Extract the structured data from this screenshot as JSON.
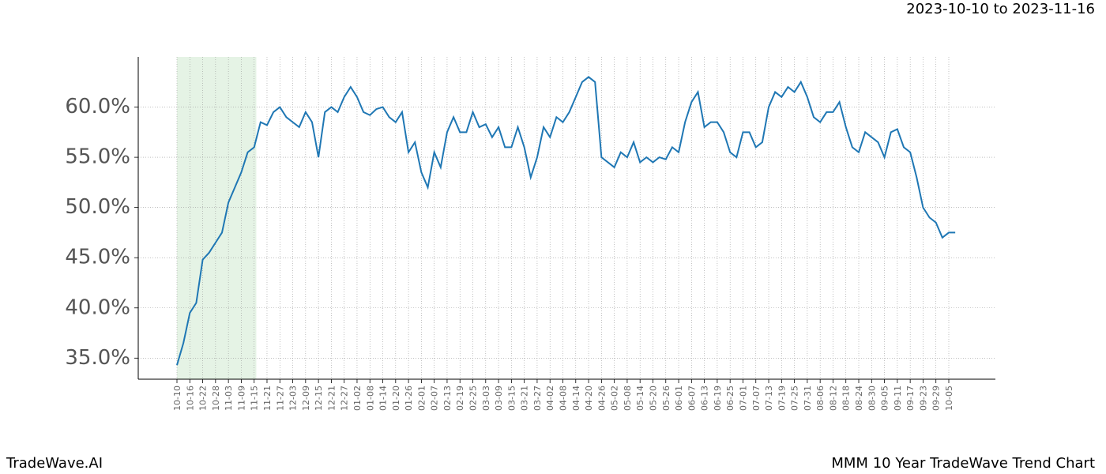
{
  "chart_data": {
    "type": "line",
    "title": "MMM 10 Year TradeWave Trend Chart",
    "subtitle": "2023-10-10 to 2023-11-16",
    "brand": "TradeWave.AI",
    "x": [
      "10-10",
      "10-13",
      "10-16",
      "10-19",
      "10-22",
      "10-25",
      "10-28",
      "10-31",
      "11-03",
      "11-06",
      "11-09",
      "11-12",
      "11-15",
      "11-18",
      "11-21",
      "11-24",
      "11-27",
      "11-30",
      "12-03",
      "12-06",
      "12-09",
      "12-12",
      "12-15",
      "12-18",
      "12-21",
      "12-24",
      "12-27",
      "12-30",
      "01-02",
      "01-05",
      "01-08",
      "01-11",
      "01-14",
      "01-17",
      "01-20",
      "01-23",
      "01-26",
      "01-29",
      "02-01",
      "02-04",
      "02-07",
      "02-10",
      "02-13",
      "02-16",
      "02-19",
      "02-22",
      "02-25",
      "02-28",
      "03-03",
      "03-06",
      "03-09",
      "03-12",
      "03-15",
      "03-18",
      "03-21",
      "03-24",
      "03-27",
      "03-30",
      "04-02",
      "04-05",
      "04-08",
      "04-11",
      "04-14",
      "04-17",
      "04-20",
      "04-23",
      "04-26",
      "04-29",
      "05-02",
      "05-05",
      "05-08",
      "05-11",
      "05-14",
      "05-17",
      "05-20",
      "05-23",
      "05-26",
      "05-29",
      "06-01",
      "06-04",
      "06-07",
      "06-10",
      "06-13",
      "06-16",
      "06-19",
      "06-22",
      "06-25",
      "06-28",
      "07-01",
      "07-04",
      "07-07",
      "07-10",
      "07-13",
      "07-16",
      "07-19",
      "07-22",
      "07-25",
      "07-28",
      "07-31",
      "08-03",
      "08-06",
      "08-09",
      "08-12",
      "08-15",
      "08-18",
      "08-21",
      "08-24",
      "08-27",
      "08-30",
      "09-02",
      "09-05",
      "09-08",
      "09-11",
      "09-14",
      "09-17",
      "09-20",
      "09-23",
      "09-26",
      "09-29",
      "10-02",
      "10-05",
      "10-08"
    ],
    "series": [
      {
        "name": "MMM",
        "color": "#1f77b4",
        "values": [
          34.3,
          36.5,
          39.5,
          40.5,
          44.8,
          45.5,
          46.5,
          47.5,
          50.5,
          52,
          53.5,
          55.5,
          56,
          58.5,
          58.2,
          59.5,
          60,
          59,
          58.5,
          58,
          59.5,
          58.5,
          55,
          59.5,
          60,
          59.5,
          61,
          62,
          61,
          59.5,
          59.2,
          59.8,
          60,
          59,
          58.5,
          59.5,
          55.5,
          56.5,
          53.5,
          52,
          55.5,
          54,
          57.5,
          59,
          57.5,
          57.5,
          59.5,
          58,
          58.3,
          57,
          58,
          56,
          56,
          58,
          56,
          53,
          55,
          58,
          57,
          59,
          58.5,
          59.5,
          61,
          62.5,
          63,
          62.5,
          55,
          54.5,
          54,
          55.5,
          55,
          56.5,
          54.5,
          55,
          54.5,
          55,
          54.8,
          56,
          55.5,
          58.5,
          60.5,
          61.5,
          58,
          58.5,
          58.5,
          57.5,
          55.5,
          55,
          57.5,
          57.5,
          56,
          56.5,
          60,
          61.5,
          61,
          62,
          61.5,
          62.5,
          61,
          59,
          58.5,
          59.5,
          59.5,
          60.5,
          58,
          56,
          55.5,
          57.5,
          57,
          56.5,
          55,
          57.5,
          57.8,
          56,
          55.5,
          53,
          50,
          49,
          48.5,
          47,
          47.5,
          47.5
        ]
      }
    ],
    "xticks": [
      "10-10",
      "10-16",
      "10-22",
      "10-28",
      "11-03",
      "11-09",
      "11-15",
      "11-21",
      "11-27",
      "12-03",
      "12-09",
      "12-15",
      "12-21",
      "12-27",
      "01-02",
      "01-08",
      "01-14",
      "01-20",
      "01-26",
      "02-01",
      "02-07",
      "02-13",
      "02-19",
      "02-25",
      "03-03",
      "03-09",
      "03-15",
      "03-21",
      "03-27",
      "04-02",
      "04-08",
      "04-14",
      "04-20",
      "04-26",
      "05-02",
      "05-08",
      "05-14",
      "05-20",
      "05-26",
      "06-01",
      "06-07",
      "06-13",
      "06-19",
      "06-25",
      "07-01",
      "07-07",
      "07-13",
      "07-19",
      "07-25",
      "07-31",
      "08-06",
      "08-12",
      "08-18",
      "08-24",
      "08-30",
      "09-05",
      "09-11",
      "09-17",
      "09-23",
      "09-29",
      "10-05"
    ],
    "ylim": [
      32.9,
      65.0
    ],
    "yticks": [
      {
        "value": 35,
        "label": "35.0%"
      },
      {
        "value": 40,
        "label": "40.0%"
      },
      {
        "value": 45,
        "label": "45.0%"
      },
      {
        "value": 50,
        "label": "50.0%"
      },
      {
        "value": 55,
        "label": "55.0%"
      },
      {
        "value": 60,
        "label": "60.0%"
      }
    ],
    "grid": true
  }
}
